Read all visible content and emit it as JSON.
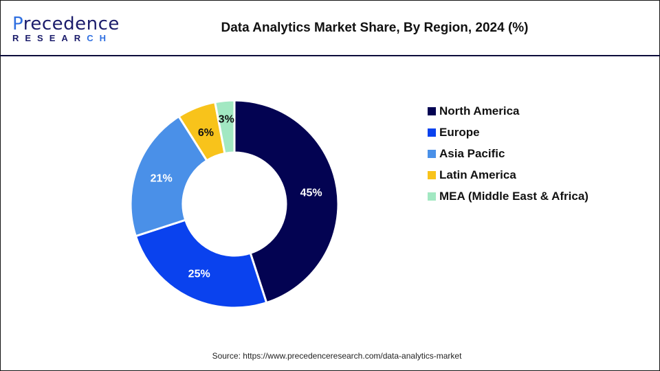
{
  "header": {
    "logo_text": "Precedence",
    "logo_sub": "RESEARCH",
    "title": "Data Analytics Market Share, By Region, 2024 (%)"
  },
  "chart_data": {
    "type": "pie",
    "variant": "donut",
    "title": "Data Analytics Market Share, By Region, 2024 (%)",
    "categories": [
      "North America",
      "Europe",
      "Asia Pacific",
      "Latin America",
      "MEA (Middle East & Africa)"
    ],
    "values": [
      45,
      25,
      21,
      6,
      3
    ],
    "labels": [
      "45%",
      "25%",
      "21%",
      "6%",
      "3%"
    ],
    "colors": [
      "#030352",
      "#0a42ee",
      "#4a90e8",
      "#f8c31b",
      "#a2e8c2"
    ],
    "label_colors": [
      "#ffffff",
      "#ffffff",
      "#ffffff",
      "#111111",
      "#111111"
    ],
    "legend_position": "right",
    "start": "top, clockwise"
  },
  "source": "Source: https://www.precedenceresearch.com/data-analytics-market"
}
